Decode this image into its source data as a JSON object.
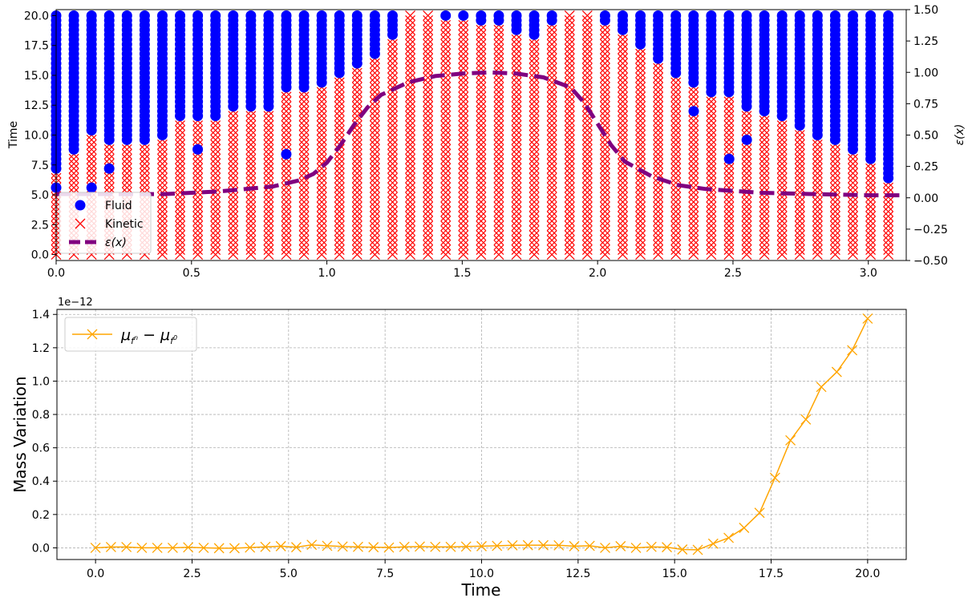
{
  "chart_data": [
    {
      "type": "scatter",
      "title": "",
      "xlabel": "",
      "ylabel": "Time",
      "ylabel_right": "ε(x)",
      "xlim": [
        0.0,
        3.14
      ],
      "ylim": [
        -0.5,
        20.5
      ],
      "y2lim": [
        -0.5,
        1.5
      ],
      "x_ticks": [
        "0.0",
        "0.5",
        "1.0",
        "1.5",
        "2.0",
        "2.5",
        "3.0"
      ],
      "y_ticks": [
        "0.0",
        "2.5",
        "5.0",
        "7.5",
        "10.0",
        "12.5",
        "15.0",
        "17.5",
        "20.0"
      ],
      "y2_ticks": [
        "−0.50",
        "−0.25",
        "0.00",
        "0.25",
        "0.50",
        "0.75",
        "1.00",
        "1.25",
        "1.50"
      ],
      "grid": false,
      "legend_position": "bottom-left",
      "legend": [
        {
          "label": "Fluid",
          "marker": "circle",
          "color": "#0000ff"
        },
        {
          "label": "Kinetic",
          "marker": "x",
          "color": "#ff0000"
        },
        {
          "label": "ε(x)",
          "marker": "dashed-line",
          "color": "#800080"
        }
      ],
      "grid_x": {
        "start": 0.0,
        "step": 0.0654,
        "count": 48
      },
      "time_levels": {
        "start": 0.0,
        "step": 0.4,
        "count": 51
      },
      "regime_note": "per column: kinetic (x) for time below fluid_start, fluid (o) above; isolated fluid dots at isolated_fluid",
      "fluid_start": [
        7.2,
        8.8,
        10.4,
        9.6,
        9.6,
        9.6,
        10.0,
        11.6,
        11.6,
        11.6,
        12.4,
        12.4,
        12.4,
        14.0,
        14.0,
        14.4,
        15.2,
        16.0,
        16.8,
        18.4,
        20.4,
        20.4,
        20.0,
        20.0,
        19.6,
        19.6,
        18.8,
        18.4,
        19.6,
        20.4,
        20.4,
        19.6,
        18.8,
        17.6,
        16.4,
        15.2,
        14.4,
        13.6,
        13.6,
        12.4,
        12.0,
        11.6,
        10.8,
        10.0,
        9.6,
        8.8,
        8.0,
        6.4
      ],
      "isolated_fluid": [
        [
          0.0,
          5.6
        ],
        [
          0.131,
          5.6
        ],
        [
          0.196,
          7.2
        ],
        [
          0.523,
          8.8
        ],
        [
          0.85,
          8.4
        ],
        [
          2.355,
          12.0
        ],
        [
          2.486,
          8.0
        ],
        [
          2.551,
          9.6
        ]
      ],
      "epsilon_curve": {
        "name": "ε(x)",
        "style": "dashed",
        "color": "#800080",
        "x": [
          0.0,
          0.2,
          0.4,
          0.6,
          0.8,
          0.9,
          0.95,
          1.0,
          1.05,
          1.1,
          1.15,
          1.2,
          1.3,
          1.4,
          1.5,
          1.6,
          1.7,
          1.8,
          1.9,
          1.95,
          2.0,
          2.05,
          2.1,
          2.2,
          2.3,
          2.4,
          2.6,
          2.8,
          3.0,
          3.14
        ],
        "y": [
          0.03,
          0.03,
          0.03,
          0.05,
          0.09,
          0.14,
          0.19,
          0.28,
          0.42,
          0.58,
          0.72,
          0.82,
          0.92,
          0.97,
          0.99,
          1.0,
          0.99,
          0.96,
          0.88,
          0.76,
          0.59,
          0.42,
          0.29,
          0.17,
          0.1,
          0.07,
          0.04,
          0.03,
          0.02,
          0.02
        ]
      }
    },
    {
      "type": "line",
      "title": "",
      "xlabel": "Time",
      "ylabel": "Mass Variation",
      "offset_label": "1e−12",
      "xlim": [
        -1.0,
        21.0
      ],
      "ylim": [
        -0.07,
        1.43
      ],
      "x_ticks": [
        "0.0",
        "2.5",
        "5.0",
        "7.5",
        "10.0",
        "12.5",
        "15.0",
        "17.5",
        "20.0"
      ],
      "y_ticks": [
        "0.0",
        "0.2",
        "0.4",
        "0.6",
        "0.8",
        "1.0",
        "1.2",
        "1.4"
      ],
      "grid": true,
      "legend_position": "top-left",
      "series": [
        {
          "name": "μ_{f^n} − μ_{f^0}",
          "color": "#ffa500",
          "marker": "x",
          "x": [
            0.0,
            0.4,
            0.8,
            1.2,
            1.6,
            2.0,
            2.4,
            2.8,
            3.2,
            3.6,
            4.0,
            4.4,
            4.8,
            5.2,
            5.6,
            6.0,
            6.4,
            6.8,
            7.2,
            7.6,
            8.0,
            8.4,
            8.8,
            9.2,
            9.6,
            10.0,
            10.4,
            10.8,
            11.2,
            11.6,
            12.0,
            12.4,
            12.8,
            13.2,
            13.6,
            14.0,
            14.4,
            14.8,
            15.2,
            15.6,
            16.0,
            16.4,
            16.8,
            17.2,
            17.6,
            18.0,
            18.4,
            18.8,
            19.2,
            19.6,
            20.0
          ],
          "values": [
            0.0,
            0.005,
            0.005,
            0.0,
            0.0,
            0.0,
            0.003,
            0.0,
            -0.002,
            -0.002,
            0.002,
            0.006,
            0.01,
            0.004,
            0.018,
            0.012,
            0.008,
            0.006,
            0.004,
            0.002,
            0.006,
            0.008,
            0.006,
            0.006,
            0.008,
            0.01,
            0.012,
            0.015,
            0.016,
            0.016,
            0.015,
            0.01,
            0.012,
            0.0,
            0.01,
            0.0,
            0.006,
            0.004,
            -0.01,
            -0.012,
            0.025,
            0.06,
            0.12,
            0.21,
            0.42,
            0.645,
            0.77,
            0.965,
            1.055,
            1.185,
            1.375
          ]
        }
      ]
    }
  ]
}
